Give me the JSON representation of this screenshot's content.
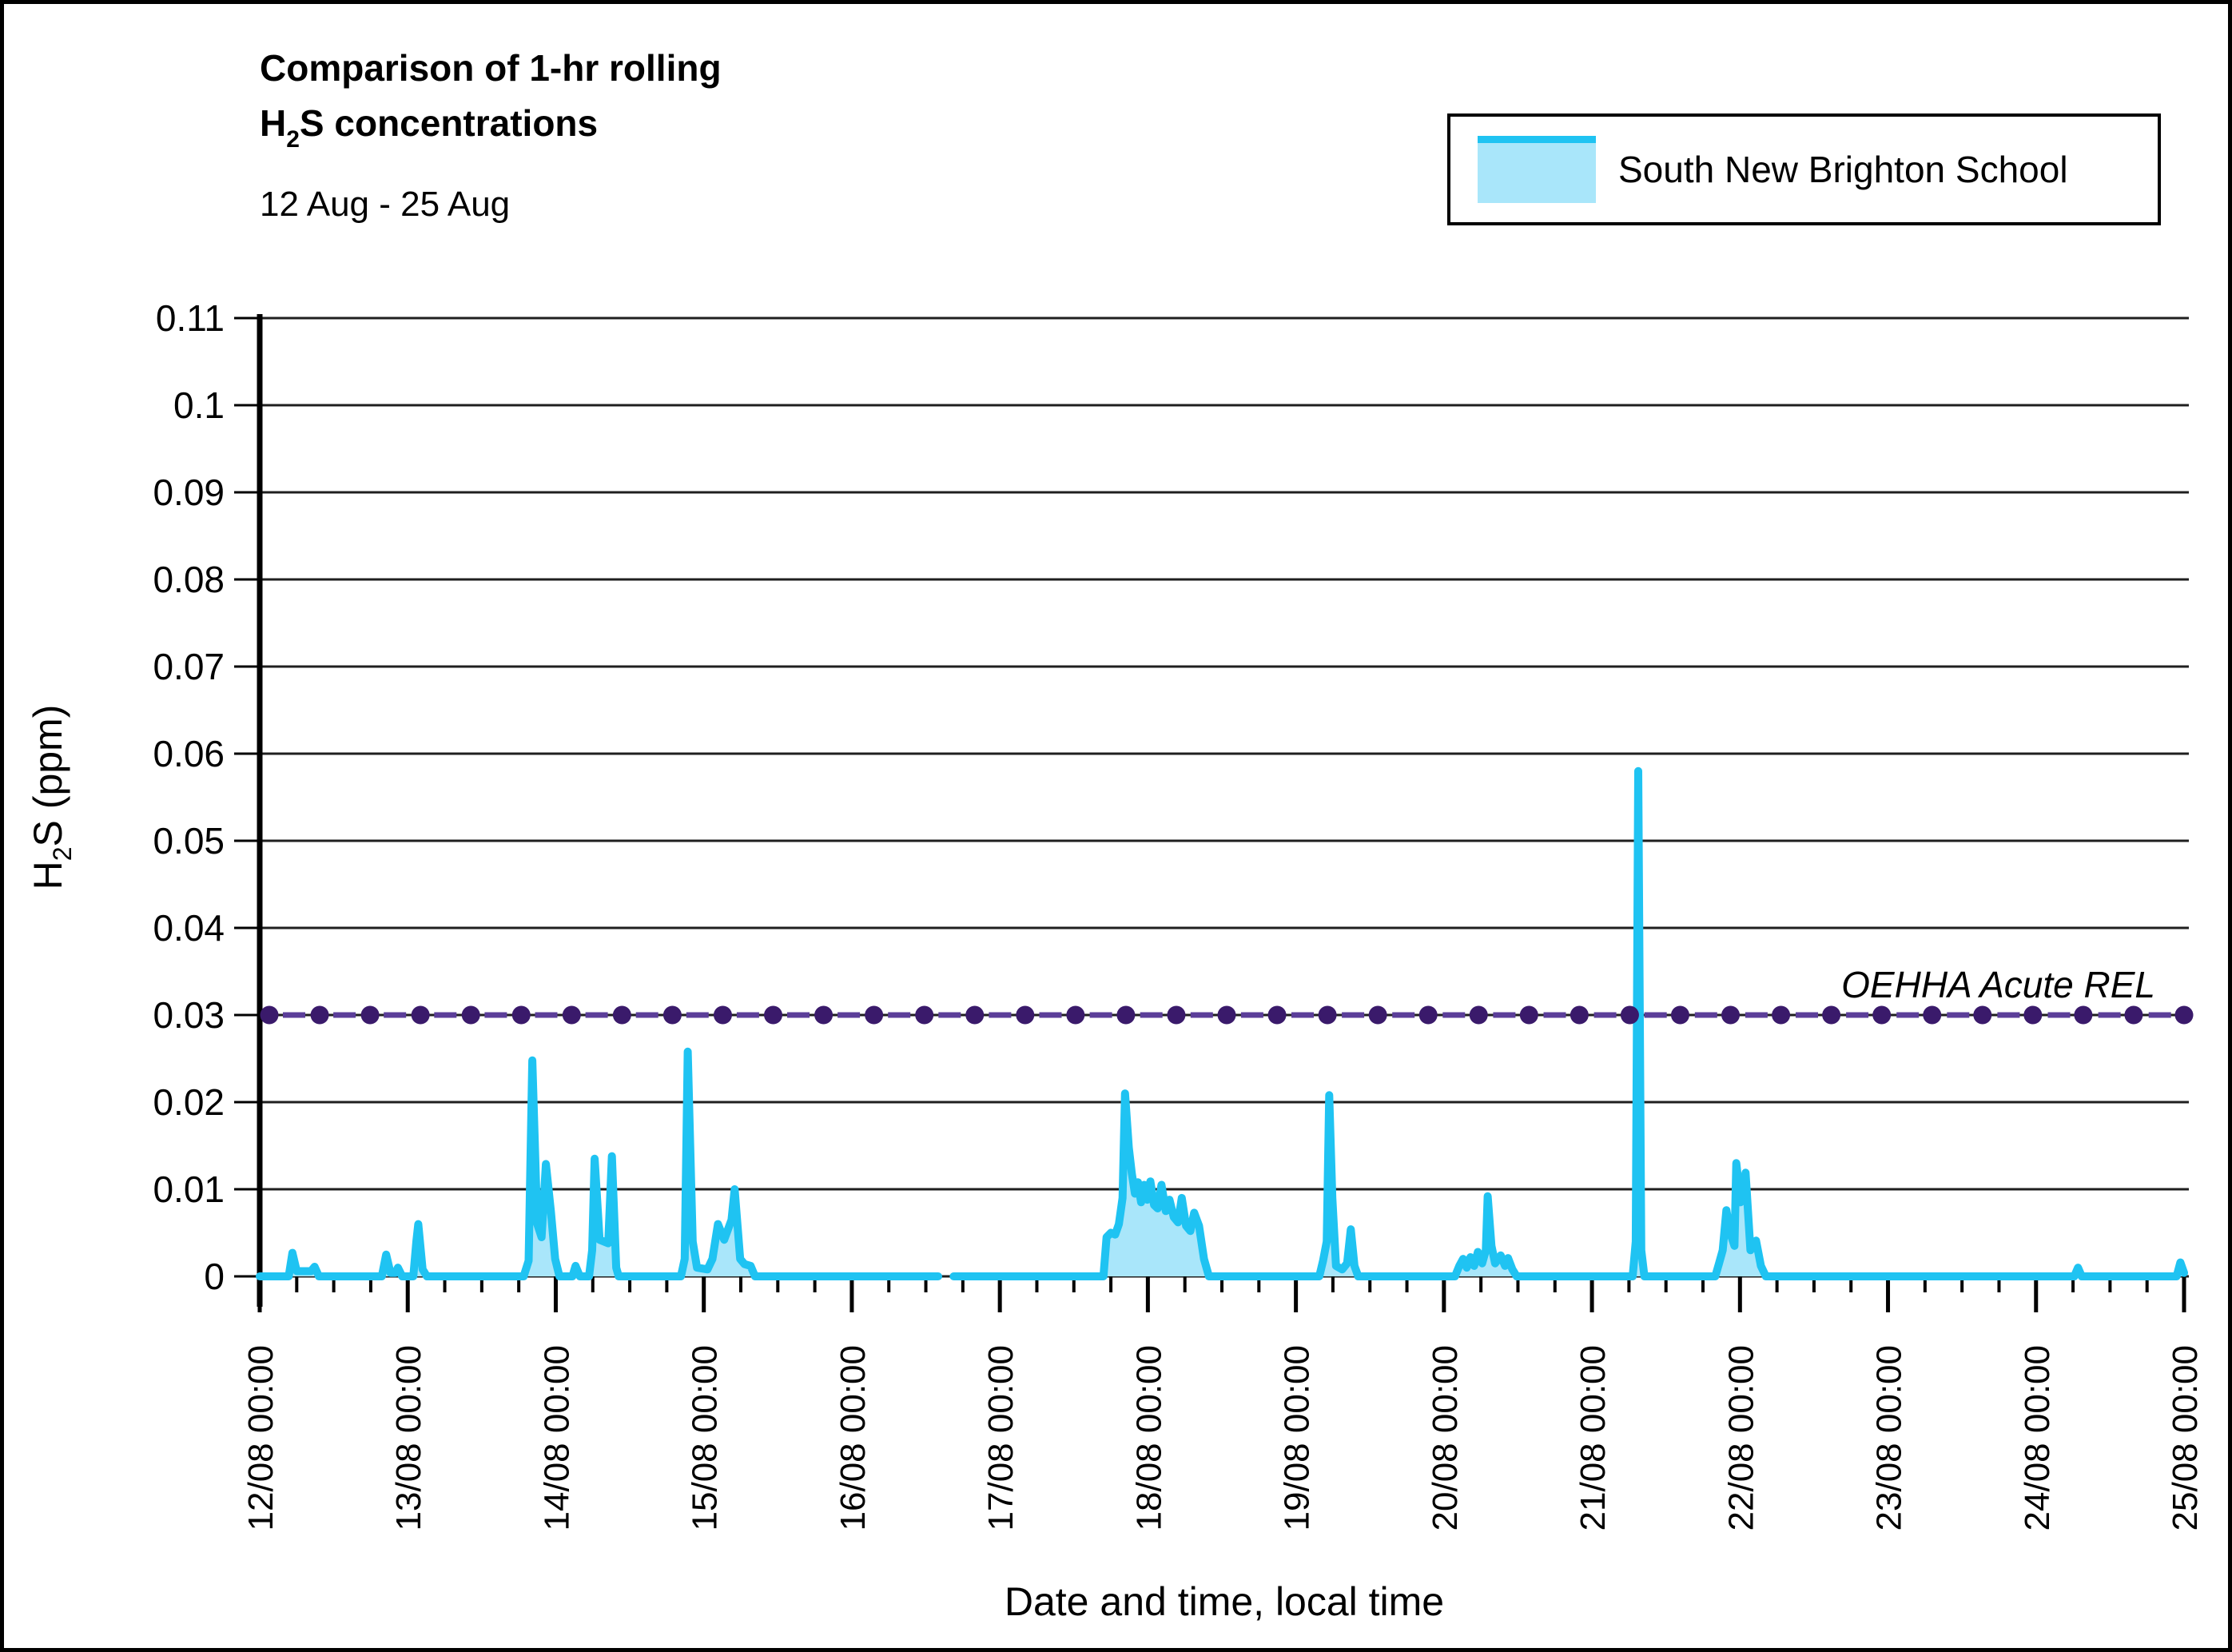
{
  "window": {
    "background": "#ffffff",
    "border_color": "#000000"
  },
  "header": {
    "title_line1": "Comparison of 1-hr rolling",
    "title_line2": {
      "pre": "H",
      "sub": "2",
      "post": "S concentrations"
    },
    "date_range": "12 Aug - 25 Aug"
  },
  "legend": {
    "series_label": "South New Brighton School",
    "swatch_fill": "#A9E6FA",
    "swatch_line": "#1FC3F2"
  },
  "chart_data": {
    "type": "area",
    "title": "Comparison of 1-hr rolling H2S concentrations",
    "subtitle": "12 Aug - 25 Aug",
    "xlabel": "Date and time, local time",
    "ylabel": "H2S (ppm)",
    "ylabel_parts": {
      "pre": "H",
      "sub": "2",
      "post": "S (ppm)"
    },
    "ylim": [
      0,
      0.11
    ],
    "ytick_labels": [
      "0",
      "0.01",
      "0.02",
      "0.03",
      "0.04",
      "0.05",
      "0.06",
      "0.07",
      "0.08",
      "0.09",
      "0.1",
      "0.11"
    ],
    "xtick_labels": [
      "12/08 00:00",
      "13/08 00:00",
      "14/08 00:00",
      "15/08 00:00",
      "16/08 00:00",
      "17/08 00:00",
      "18/08 00:00",
      "19/08 00:00",
      "20/08 00:00",
      "21/08 00:00",
      "22/08 00:00",
      "23/08 00:00",
      "24/08 00:00",
      "25/08 00:00"
    ],
    "x_minor_tick_hours": 6,
    "grid": "horizontal",
    "legend_position": "top-right",
    "reference_line": {
      "label": "OEHHA Acute REL",
      "value": 0.03,
      "dot_color": "#3A1A6B",
      "dash_color": "#5B3E99"
    },
    "series": [
      {
        "name": "South New Brighton School",
        "color": "#1FC3F2",
        "fill": "#A9E6FA",
        "x_unit": "hours since 12/08 00:00 local",
        "y_unit": "ppm",
        "points": [
          [
            0,
            0
          ],
          [
            4.7,
            0
          ],
          [
            5.3,
            0.0027
          ],
          [
            6.0,
            0.0006
          ],
          [
            8.3,
            0.0006
          ],
          [
            8.9,
            0.0011
          ],
          [
            9.6,
            0
          ],
          [
            19.8,
            0
          ],
          [
            20.5,
            0.0025
          ],
          [
            21.2,
            0.0004
          ],
          [
            22.0,
            0.0004
          ],
          [
            22.4,
            0.001
          ],
          [
            23.1,
            0
          ],
          [
            24.9,
            0
          ],
          [
            25.4,
            0.004
          ],
          [
            25.7,
            0.006
          ],
          [
            26.4,
            0.0008
          ],
          [
            27.1,
            0
          ],
          [
            42.8,
            0
          ],
          [
            43.6,
            0.0018
          ],
          [
            44.2,
            0.0248
          ],
          [
            45.0,
            0.006
          ],
          [
            45.7,
            0.0045
          ],
          [
            46.4,
            0.0129
          ],
          [
            47.2,
            0.0075
          ],
          [
            47.9,
            0.002
          ],
          [
            48.6,
            0
          ],
          [
            50.7,
            0
          ],
          [
            51.2,
            0.0012
          ],
          [
            51.9,
            0
          ],
          [
            53.4,
            0
          ],
          [
            53.9,
            0.003
          ],
          [
            54.3,
            0.0135
          ],
          [
            55.1,
            0.0042
          ],
          [
            56.5,
            0.0038
          ],
          [
            57.1,
            0.0138
          ],
          [
            57.8,
            0.001
          ],
          [
            58.2,
            0
          ],
          [
            68.3,
            0
          ],
          [
            68.9,
            0.002
          ],
          [
            69.4,
            0.0258
          ],
          [
            70.2,
            0.004
          ],
          [
            70.9,
            0.001
          ],
          [
            72.6,
            0.0008
          ],
          [
            73.4,
            0.002
          ],
          [
            74.3,
            0.006
          ],
          [
            75.3,
            0.0042
          ],
          [
            76.5,
            0.0065
          ],
          [
            77.0,
            0.01
          ],
          [
            77.9,
            0.002
          ],
          [
            78.6,
            0.0014
          ],
          [
            79.6,
            0.0012
          ],
          [
            80.3,
            0
          ],
          [
            110.0,
            0
          ],
          null,
          [
            112.5,
            0
          ],
          [
            136.8,
            0
          ],
          [
            137.3,
            0.0045
          ],
          [
            138.0,
            0.005
          ],
          [
            138.7,
            0.0048
          ],
          [
            139.3,
            0.006
          ],
          [
            139.9,
            0.009
          ],
          [
            140.3,
            0.021
          ],
          [
            140.9,
            0.0148
          ],
          [
            141.4,
            0.0118
          ],
          [
            141.9,
            0.0095
          ],
          [
            142.4,
            0.0108
          ],
          [
            142.9,
            0.0085
          ],
          [
            143.4,
            0.0105
          ],
          [
            143.9,
            0.0088
          ],
          [
            144.4,
            0.0109
          ],
          [
            145.0,
            0.0082
          ],
          [
            145.6,
            0.0078
          ],
          [
            146.2,
            0.0105
          ],
          [
            146.9,
            0.0075
          ],
          [
            147.5,
            0.0088
          ],
          [
            148.2,
            0.0068
          ],
          [
            148.9,
            0.0062
          ],
          [
            149.5,
            0.009
          ],
          [
            150.2,
            0.0058
          ],
          [
            150.9,
            0.0052
          ],
          [
            151.5,
            0.0073
          ],
          [
            152.3,
            0.0058
          ],
          [
            153.1,
            0.002
          ],
          [
            153.9,
            0
          ],
          [
            171.8,
            0
          ],
          [
            172.4,
            0.0018
          ],
          [
            173.0,
            0.004
          ],
          [
            173.4,
            0.0208
          ],
          [
            173.9,
            0.009
          ],
          [
            174.5,
            0.0012
          ],
          [
            175.5,
            0.0008
          ],
          [
            176.3,
            0.0015
          ],
          [
            176.9,
            0.0054
          ],
          [
            177.5,
            0.0012
          ],
          [
            178.1,
            0
          ],
          [
            193.8,
            0
          ],
          [
            194.5,
            0.0012
          ],
          [
            195.1,
            0.002
          ],
          [
            195.7,
            0.001
          ],
          [
            196.3,
            0.0022
          ],
          [
            196.9,
            0.0012
          ],
          [
            197.5,
            0.0028
          ],
          [
            198.2,
            0.0015
          ],
          [
            198.8,
            0.003
          ],
          [
            199.1,
            0.0092
          ],
          [
            199.7,
            0.0035
          ],
          [
            200.3,
            0.0015
          ],
          [
            201.2,
            0.0024
          ],
          [
            201.9,
            0.0012
          ],
          [
            202.4,
            0.0021
          ],
          [
            203.1,
            0.0008
          ],
          [
            203.8,
            0
          ],
          [
            222.6,
            0
          ],
          [
            223.1,
            0.004
          ],
          [
            223.5,
            0.058
          ],
          [
            224.0,
            0.003
          ],
          [
            224.5,
            0
          ],
          [
            236.0,
            0
          ],
          [
            236.6,
            0.0015
          ],
          [
            237.2,
            0.003
          ],
          [
            237.8,
            0.0076
          ],
          [
            238.4,
            0.005
          ],
          [
            239.1,
            0.0035
          ],
          [
            239.4,
            0.013
          ],
          [
            240.1,
            0.0085
          ],
          [
            240.9,
            0.0119
          ],
          [
            241.7,
            0.003
          ],
          [
            242.6,
            0.0041
          ],
          [
            243.4,
            0.0012
          ],
          [
            244.2,
            0
          ],
          [
            294.2,
            0
          ],
          [
            294.8,
            0.001
          ],
          [
            295.4,
            0
          ],
          [
            310.8,
            0
          ],
          [
            311.4,
            0.0016
          ],
          [
            312,
            0.0004
          ]
        ]
      }
    ]
  }
}
